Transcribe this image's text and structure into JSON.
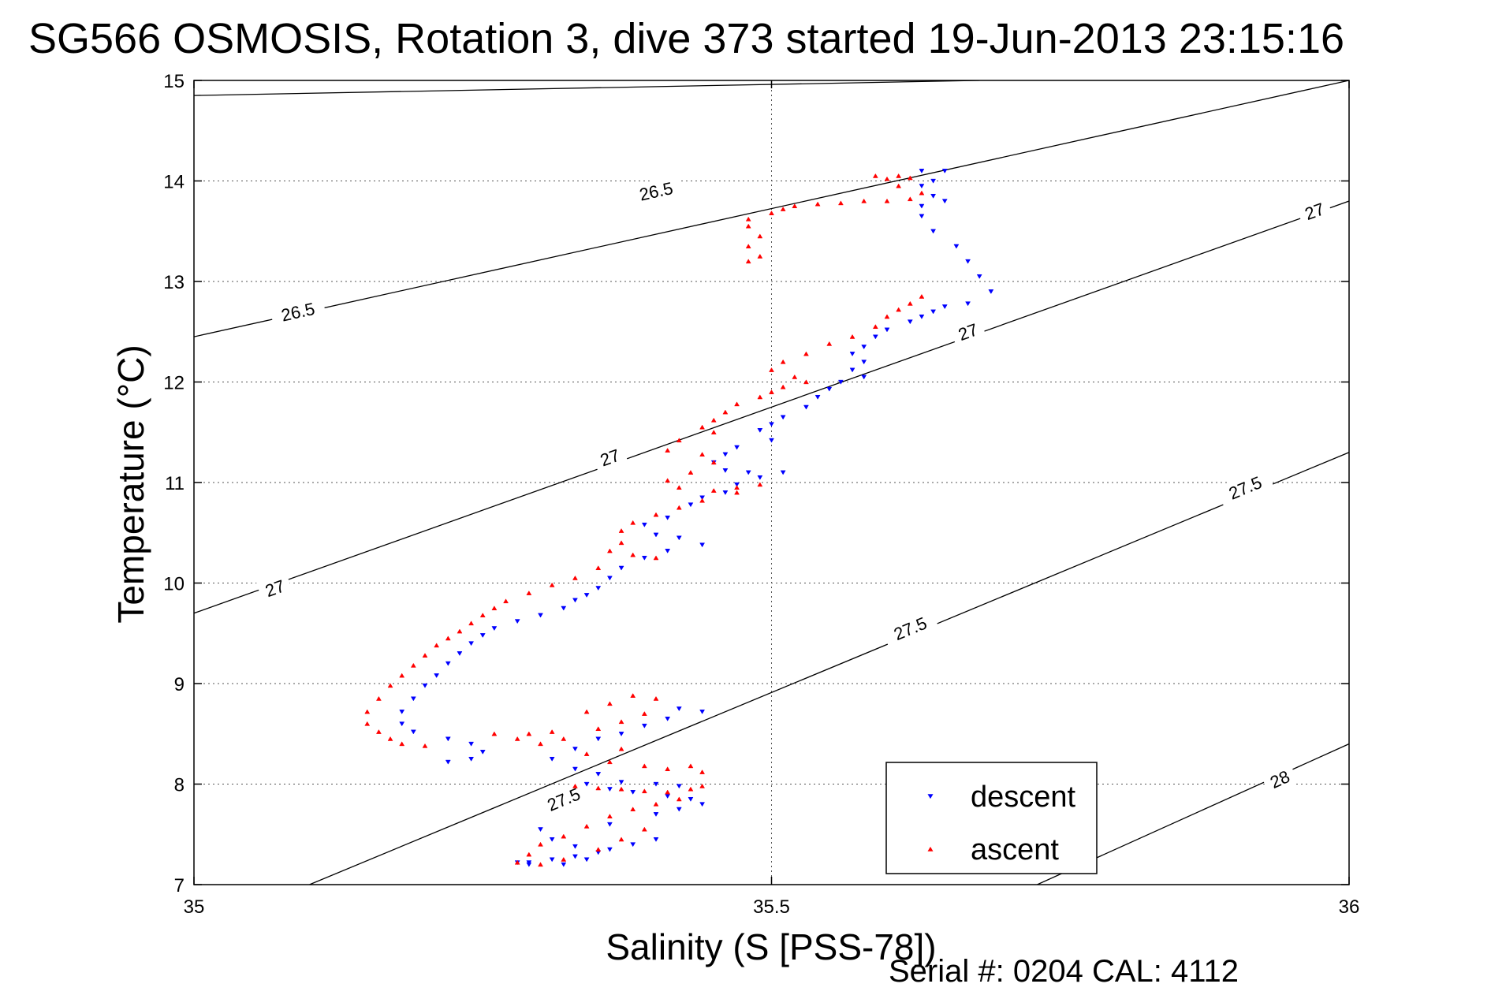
{
  "page": {
    "title": "SG566 OSMOSIS, Rotation 3, dive 373 started 19-Jun-2013 23:15:16",
    "footer": "Serial #: 0204  CAL: 4112"
  },
  "chart_data": {
    "type": "scatter",
    "title": "SG566 OSMOSIS, Rotation 3, dive 373 started 19-Jun-2013 23:15:16",
    "xlabel": "Salinity (S [PSS-78])",
    "ylabel": "Temperature (°C)",
    "xlim": [
      35,
      36
    ],
    "ylim": [
      7,
      15
    ],
    "xticks": [
      35,
      35.5,
      36
    ],
    "xtick_labels": [
      "35",
      "35.5",
      "36"
    ],
    "yticks": [
      7,
      8,
      9,
      10,
      11,
      12,
      13,
      14,
      15
    ],
    "ytick_labels": [
      "7",
      "8",
      "9",
      "10",
      "11",
      "12",
      "13",
      "14",
      "15"
    ],
    "grid": true,
    "legend_position": "bottom-right",
    "series": [
      {
        "name": "descent",
        "color": "#0000ff",
        "marker": "triangle-down",
        "points": [
          [
            35.63,
            14.1
          ],
          [
            35.65,
            14.1
          ],
          [
            35.64,
            14.0
          ],
          [
            35.63,
            13.95
          ],
          [
            35.64,
            13.85
          ],
          [
            35.65,
            13.8
          ],
          [
            35.63,
            13.75
          ],
          [
            35.63,
            13.65
          ],
          [
            35.64,
            13.5
          ],
          [
            35.66,
            13.35
          ],
          [
            35.67,
            13.2
          ],
          [
            35.68,
            13.05
          ],
          [
            35.69,
            12.9
          ],
          [
            35.67,
            12.78
          ],
          [
            35.65,
            12.75
          ],
          [
            35.64,
            12.7
          ],
          [
            35.63,
            12.65
          ],
          [
            35.62,
            12.6
          ],
          [
            35.6,
            12.52
          ],
          [
            35.59,
            12.45
          ],
          [
            35.58,
            12.35
          ],
          [
            35.57,
            12.28
          ],
          [
            35.58,
            12.2
          ],
          [
            35.57,
            12.12
          ],
          [
            35.58,
            12.05
          ],
          [
            35.56,
            12.0
          ],
          [
            35.55,
            11.93
          ],
          [
            35.54,
            11.85
          ],
          [
            35.53,
            11.75
          ],
          [
            35.51,
            11.65
          ],
          [
            35.5,
            11.58
          ],
          [
            35.49,
            11.52
          ],
          [
            35.5,
            11.42
          ],
          [
            35.47,
            11.35
          ],
          [
            35.46,
            11.28
          ],
          [
            35.45,
            11.2
          ],
          [
            35.46,
            11.12
          ],
          [
            35.48,
            11.1
          ],
          [
            35.51,
            11.1
          ],
          [
            35.49,
            11.05
          ],
          [
            35.47,
            10.98
          ],
          [
            35.46,
            10.9
          ],
          [
            35.44,
            10.85
          ],
          [
            35.43,
            10.78
          ],
          [
            35.41,
            10.65
          ],
          [
            35.39,
            10.58
          ],
          [
            35.4,
            10.48
          ],
          [
            35.42,
            10.45
          ],
          [
            35.44,
            10.38
          ],
          [
            35.41,
            10.32
          ],
          [
            35.39,
            10.25
          ],
          [
            35.37,
            10.15
          ],
          [
            35.36,
            10.05
          ],
          [
            35.35,
            9.95
          ],
          [
            35.34,
            9.88
          ],
          [
            35.33,
            9.83
          ],
          [
            35.32,
            9.75
          ],
          [
            35.3,
            9.68
          ],
          [
            35.28,
            9.62
          ],
          [
            35.26,
            9.55
          ],
          [
            35.25,
            9.48
          ],
          [
            35.24,
            9.4
          ],
          [
            35.23,
            9.3
          ],
          [
            35.22,
            9.2
          ],
          [
            35.21,
            9.08
          ],
          [
            35.2,
            8.98
          ],
          [
            35.19,
            8.85
          ],
          [
            35.18,
            8.72
          ],
          [
            35.18,
            8.6
          ],
          [
            35.19,
            8.52
          ],
          [
            35.22,
            8.45
          ],
          [
            35.24,
            8.4
          ],
          [
            35.25,
            8.32
          ],
          [
            35.24,
            8.25
          ],
          [
            35.22,
            8.22
          ],
          [
            35.42,
            8.75
          ],
          [
            35.44,
            8.72
          ],
          [
            35.41,
            8.65
          ],
          [
            35.39,
            8.58
          ],
          [
            35.37,
            8.5
          ],
          [
            35.35,
            8.45
          ],
          [
            35.33,
            8.35
          ],
          [
            35.31,
            8.25
          ],
          [
            35.33,
            8.15
          ],
          [
            35.35,
            8.1
          ],
          [
            35.37,
            8.02
          ],
          [
            35.4,
            8.0
          ],
          [
            35.42,
            7.98
          ],
          [
            35.34,
            8.0
          ],
          [
            35.36,
            7.95
          ],
          [
            35.38,
            7.92
          ],
          [
            35.41,
            7.88
          ],
          [
            35.43,
            7.85
          ],
          [
            35.44,
            7.8
          ],
          [
            35.42,
            7.75
          ],
          [
            35.4,
            7.7
          ],
          [
            35.31,
            7.45
          ],
          [
            35.33,
            7.38
          ],
          [
            35.35,
            7.32
          ],
          [
            35.33,
            7.28
          ],
          [
            35.31,
            7.25
          ],
          [
            35.29,
            7.22
          ],
          [
            35.32,
            7.2
          ],
          [
            35.34,
            7.25
          ],
          [
            35.36,
            7.35
          ],
          [
            35.38,
            7.4
          ],
          [
            35.4,
            7.45
          ],
          [
            35.3,
            7.55
          ],
          [
            35.36,
            7.6
          ],
          [
            35.29,
            7.2
          ],
          [
            35.28,
            7.22
          ]
        ]
      },
      {
        "name": "ascent",
        "color": "#ff0000",
        "marker": "triangle-up",
        "points": [
          [
            35.59,
            14.05
          ],
          [
            35.61,
            14.05
          ],
          [
            35.62,
            14.03
          ],
          [
            35.6,
            14.02
          ],
          [
            35.61,
            13.95
          ],
          [
            35.63,
            13.88
          ],
          [
            35.62,
            13.82
          ],
          [
            35.6,
            13.8
          ],
          [
            35.58,
            13.8
          ],
          [
            35.56,
            13.78
          ],
          [
            35.54,
            13.77
          ],
          [
            35.52,
            13.75
          ],
          [
            35.51,
            13.72
          ],
          [
            35.5,
            13.68
          ],
          [
            35.48,
            13.62
          ],
          [
            35.48,
            13.55
          ],
          [
            35.49,
            13.45
          ],
          [
            35.48,
            13.35
          ],
          [
            35.49,
            13.25
          ],
          [
            35.48,
            13.2
          ],
          [
            35.63,
            12.85
          ],
          [
            35.62,
            12.78
          ],
          [
            35.61,
            12.72
          ],
          [
            35.6,
            12.65
          ],
          [
            35.59,
            12.55
          ],
          [
            35.57,
            12.45
          ],
          [
            35.55,
            12.38
          ],
          [
            35.53,
            12.28
          ],
          [
            35.51,
            12.2
          ],
          [
            35.5,
            12.12
          ],
          [
            35.52,
            12.05
          ],
          [
            35.53,
            12.0
          ],
          [
            35.51,
            11.95
          ],
          [
            35.5,
            11.9
          ],
          [
            35.49,
            11.85
          ],
          [
            35.47,
            11.78
          ],
          [
            35.46,
            11.7
          ],
          [
            35.45,
            11.62
          ],
          [
            35.44,
            11.55
          ],
          [
            35.45,
            11.5
          ],
          [
            35.42,
            11.42
          ],
          [
            35.41,
            11.32
          ],
          [
            35.44,
            11.28
          ],
          [
            35.45,
            11.2
          ],
          [
            35.43,
            11.1
          ],
          [
            35.41,
            11.02
          ],
          [
            35.42,
            10.95
          ],
          [
            35.45,
            10.92
          ],
          [
            35.47,
            10.95
          ],
          [
            35.49,
            10.98
          ],
          [
            35.47,
            10.9
          ],
          [
            35.44,
            10.82
          ],
          [
            35.42,
            10.75
          ],
          [
            35.4,
            10.68
          ],
          [
            35.38,
            10.6
          ],
          [
            35.37,
            10.52
          ],
          [
            35.37,
            10.4
          ],
          [
            35.36,
            10.32
          ],
          [
            35.38,
            10.28
          ],
          [
            35.4,
            10.25
          ],
          [
            35.35,
            10.15
          ],
          [
            35.33,
            10.05
          ],
          [
            35.31,
            9.98
          ],
          [
            35.29,
            9.9
          ],
          [
            35.27,
            9.82
          ],
          [
            35.26,
            9.75
          ],
          [
            35.25,
            9.68
          ],
          [
            35.24,
            9.6
          ],
          [
            35.23,
            9.52
          ],
          [
            35.22,
            9.45
          ],
          [
            35.21,
            9.38
          ],
          [
            35.2,
            9.28
          ],
          [
            35.19,
            9.18
          ],
          [
            35.18,
            9.08
          ],
          [
            35.17,
            8.98
          ],
          [
            35.16,
            8.85
          ],
          [
            35.15,
            8.72
          ],
          [
            35.15,
            8.6
          ],
          [
            35.16,
            8.52
          ],
          [
            35.17,
            8.45
          ],
          [
            35.18,
            8.4
          ],
          [
            35.2,
            8.38
          ],
          [
            35.29,
            8.5
          ],
          [
            35.32,
            8.45
          ],
          [
            35.35,
            8.55
          ],
          [
            35.37,
            8.62
          ],
          [
            35.39,
            8.7
          ],
          [
            35.4,
            8.85
          ],
          [
            35.38,
            8.88
          ],
          [
            35.36,
            8.8
          ],
          [
            35.34,
            8.72
          ],
          [
            35.37,
            8.35
          ],
          [
            35.34,
            8.3
          ],
          [
            35.36,
            8.22
          ],
          [
            35.39,
            8.18
          ],
          [
            35.41,
            8.15
          ],
          [
            35.43,
            8.18
          ],
          [
            35.44,
            8.12
          ],
          [
            35.33,
            7.98
          ],
          [
            35.35,
            7.96
          ],
          [
            35.37,
            7.95
          ],
          [
            35.39,
            7.93
          ],
          [
            35.41,
            7.92
          ],
          [
            35.43,
            7.95
          ],
          [
            35.44,
            7.98
          ],
          [
            35.42,
            7.85
          ],
          [
            35.4,
            7.8
          ],
          [
            35.38,
            7.75
          ],
          [
            35.36,
            7.68
          ],
          [
            35.34,
            7.58
          ],
          [
            35.32,
            7.48
          ],
          [
            35.3,
            7.4
          ],
          [
            35.29,
            7.3
          ],
          [
            35.28,
            7.22
          ],
          [
            35.3,
            7.2
          ],
          [
            35.32,
            7.25
          ],
          [
            35.35,
            7.35
          ],
          [
            35.37,
            7.45
          ],
          [
            35.39,
            7.55
          ],
          [
            35.31,
            8.52
          ],
          [
            35.3,
            8.4
          ],
          [
            35.28,
            8.45
          ],
          [
            35.26,
            8.5
          ]
        ]
      }
    ],
    "contours": [
      {
        "label": "26.5",
        "points": [
          [
            35.0,
            14.85
          ],
          [
            35.68,
            15.0
          ]
        ],
        "labels_at": []
      },
      {
        "label": "26.5",
        "points": [
          [
            35.0,
            12.45
          ],
          [
            36.0,
            15.0
          ]
        ],
        "labels_at": [
          [
            35.09,
            12.7
          ],
          [
            35.4,
            13.9
          ]
        ]
      },
      {
        "label": "27",
        "points": [
          [
            35.0,
            9.7
          ],
          [
            36.0,
            13.8
          ]
        ],
        "labels_at": [
          [
            35.07,
            9.95
          ],
          [
            35.36,
            11.25
          ],
          [
            35.67,
            12.5
          ],
          [
            35.97,
            13.7
          ]
        ]
      },
      {
        "label": "27.5",
        "points": [
          [
            35.1,
            7.0
          ],
          [
            36.0,
            11.3
          ]
        ],
        "labels_at": [
          [
            35.32,
            7.85
          ],
          [
            35.62,
            9.55
          ],
          [
            35.91,
            10.95
          ]
        ]
      },
      {
        "label": "28",
        "points": [
          [
            35.73,
            7.0
          ],
          [
            36.0,
            8.4
          ]
        ],
        "labels_at": [
          [
            35.94,
            8.05
          ]
        ]
      }
    ]
  }
}
